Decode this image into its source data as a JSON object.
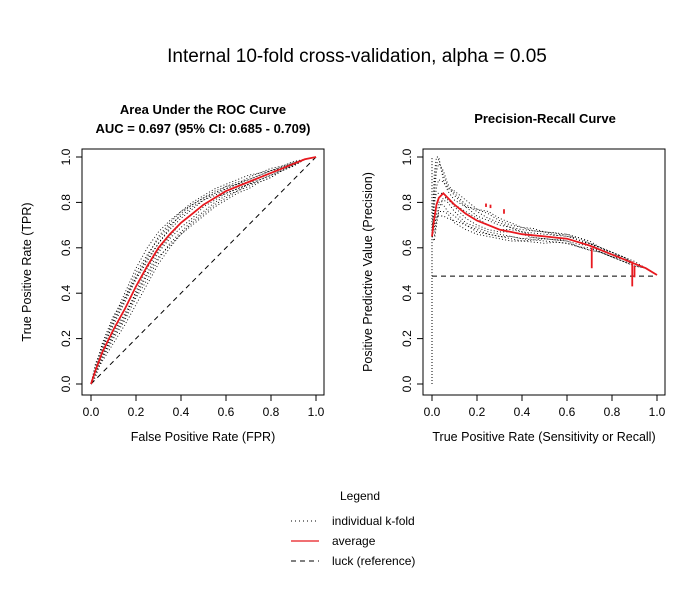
{
  "figure": {
    "title": "Internal 10-fold cross-validation, alpha = 0.05"
  },
  "colors": {
    "average": "#e8191f",
    "fold": "#000000",
    "reference": "#000000"
  },
  "legend": {
    "title": "Legend",
    "placement": "bottom-center",
    "items": [
      {
        "label": "individual k-fold",
        "style": "dotted"
      },
      {
        "label": "average",
        "style": "solid-red"
      },
      {
        "label": "luck (reference)",
        "style": "dashed"
      }
    ]
  },
  "chart_data": [
    {
      "type": "line",
      "title": "Area Under the ROC Curve",
      "subtitle": "AUC = 0.697 (95% CI: 0.685 - 0.709)",
      "xlabel": "False Positive Rate (FPR)",
      "ylabel": "True Positive Rate (TPR)",
      "xlim": [
        0,
        1
      ],
      "ylim": [
        0,
        1
      ],
      "xticks": [
        "0.0",
        "0.2",
        "0.4",
        "0.6",
        "0.8",
        "1.0"
      ],
      "yticks": [
        "0.0",
        "0.2",
        "0.4",
        "0.6",
        "0.8",
        "1.0"
      ],
      "grid": false,
      "average": {
        "x": [
          0,
          0.02,
          0.05,
          0.1,
          0.15,
          0.2,
          0.25,
          0.3,
          0.35,
          0.4,
          0.45,
          0.5,
          0.55,
          0.6,
          0.65,
          0.7,
          0.75,
          0.8,
          0.85,
          0.9,
          0.95,
          1.0
        ],
        "y": [
          0,
          0.06,
          0.14,
          0.24,
          0.33,
          0.43,
          0.52,
          0.6,
          0.66,
          0.71,
          0.75,
          0.79,
          0.82,
          0.85,
          0.87,
          0.89,
          0.91,
          0.93,
          0.95,
          0.97,
          0.99,
          1.0
        ]
      },
      "folds": [
        {
          "offsets": [
            0,
            0.02,
            0.03,
            0.04,
            0.05,
            0.06,
            0.05,
            0.04,
            0.04,
            0.03,
            0.03,
            0.02,
            0.02,
            0.02,
            0.01,
            0.01,
            0.01,
            0.01,
            0.01,
            0.005,
            0,
            0
          ]
        },
        {
          "offsets": [
            0,
            -0.02,
            -0.03,
            -0.04,
            -0.05,
            -0.05,
            -0.06,
            -0.05,
            -0.04,
            -0.04,
            -0.03,
            -0.03,
            -0.02,
            -0.02,
            -0.02,
            -0.01,
            -0.01,
            -0.01,
            -0.01,
            -0.005,
            0,
            0
          ]
        },
        {
          "offsets": [
            0,
            0.01,
            0.02,
            0.05,
            0.07,
            0.08,
            0.08,
            0.07,
            0.06,
            0.05,
            0.04,
            0.03,
            0.03,
            0.02,
            0.02,
            0.01,
            0.01,
            0.01,
            0.005,
            0.005,
            0,
            0
          ]
        },
        {
          "offsets": [
            0,
            -0.01,
            -0.04,
            -0.06,
            -0.07,
            -0.08,
            -0.08,
            -0.07,
            -0.06,
            -0.05,
            -0.04,
            -0.04,
            -0.03,
            -0.03,
            -0.02,
            -0.02,
            -0.01,
            -0.01,
            -0.005,
            -0.005,
            0,
            0
          ]
        },
        {
          "offsets": [
            0,
            0.03,
            0.02,
            0.02,
            0.03,
            0.03,
            0.02,
            0.02,
            0.03,
            0.04,
            0.04,
            0.03,
            0.02,
            0.01,
            0.01,
            0.02,
            0.02,
            0.01,
            0.0,
            0.0,
            0,
            0
          ]
        },
        {
          "offsets": [
            0,
            -0.03,
            -0.02,
            -0.01,
            -0.02,
            -0.03,
            -0.03,
            -0.02,
            -0.02,
            -0.02,
            -0.02,
            -0.01,
            -0.01,
            -0.01,
            -0.01,
            -0.01,
            -0.02,
            -0.02,
            -0.01,
            -0.01,
            0,
            0
          ]
        },
        {
          "offsets": [
            0,
            0.0,
            0.01,
            0.03,
            0.04,
            0.04,
            0.04,
            0.05,
            0.05,
            0.05,
            0.05,
            0.04,
            0.04,
            0.03,
            0.03,
            0.03,
            0.02,
            0.02,
            0.01,
            0.01,
            0,
            0
          ]
        },
        {
          "offsets": [
            0,
            0.0,
            -0.01,
            -0.02,
            -0.03,
            -0.04,
            -0.04,
            -0.04,
            -0.05,
            -0.05,
            -0.05,
            -0.05,
            -0.04,
            -0.04,
            -0.03,
            -0.03,
            -0.02,
            -0.02,
            -0.01,
            -0.01,
            0,
            0
          ]
        },
        {
          "offsets": [
            0,
            0.01,
            0.04,
            0.06,
            0.05,
            0.04,
            0.03,
            0.02,
            0.02,
            0.02,
            0.02,
            0.02,
            0.01,
            0.01,
            0.01,
            0.0,
            0.0,
            0.0,
            0.0,
            0.0,
            0,
            0
          ]
        },
        {
          "offsets": [
            0,
            -0.01,
            -0.02,
            -0.03,
            -0.04,
            -0.02,
            -0.01,
            -0.01,
            -0.01,
            0.0,
            0.0,
            0.0,
            0.0,
            -0.01,
            -0.01,
            -0.01,
            0.0,
            0.0,
            0.0,
            0.0,
            0,
            0
          ]
        }
      ],
      "reference": {
        "x": [
          0,
          1
        ],
        "y": [
          0,
          1
        ]
      }
    },
    {
      "type": "line",
      "title": "Precision-Recall Curve",
      "xlabel": "True Positive Rate (Sensitivity or Recall)",
      "ylabel": "Positive Predictive Value (Precision)",
      "xlim": [
        0,
        1
      ],
      "ylim": [
        0,
        1
      ],
      "xticks": [
        "0.0",
        "0.2",
        "0.4",
        "0.6",
        "0.8",
        "1.0"
      ],
      "yticks": [
        "0.0",
        "0.2",
        "0.4",
        "0.6",
        "0.8",
        "1.0"
      ],
      "grid": false,
      "average": {
        "x": [
          0.0,
          0.01,
          0.02,
          0.03,
          0.05,
          0.07,
          0.1,
          0.15,
          0.2,
          0.25,
          0.3,
          0.35,
          0.4,
          0.45,
          0.5,
          0.55,
          0.6,
          0.65,
          0.7,
          0.75,
          0.8,
          0.85,
          0.9,
          0.95,
          1.0
        ],
        "y": [
          0.65,
          0.73,
          0.79,
          0.82,
          0.84,
          0.82,
          0.79,
          0.75,
          0.72,
          0.7,
          0.68,
          0.67,
          0.66,
          0.655,
          0.65,
          0.645,
          0.64,
          0.625,
          0.61,
          0.59,
          0.57,
          0.55,
          0.53,
          0.51,
          0.48
        ]
      },
      "average_spikes": [
        {
          "x": 0.24,
          "y_from": 0.78,
          "y_to": 0.795
        },
        {
          "x": 0.26,
          "y_from": 0.775,
          "y_to": 0.79
        },
        {
          "x": 0.32,
          "y_from": 0.75,
          "y_to": 0.77
        },
        {
          "x": 0.71,
          "y_from": 0.6,
          "y_to": 0.51
        },
        {
          "x": 0.89,
          "y_from": 0.54,
          "y_to": 0.43
        },
        {
          "x": 0.9,
          "y_from": 0.52,
          "y_to": 0.47
        }
      ],
      "folds": [
        {
          "offsets": [
            0.0,
            0.1,
            0.15,
            0.15,
            0.1,
            0.06,
            0.05,
            0.04,
            0.04,
            0.03,
            0.03,
            0.02,
            0.02,
            0.02,
            0.02,
            0.01,
            0.01,
            0.01,
            0.01,
            0.01,
            0.01,
            0.0,
            0.0,
            0.0,
            0.0
          ]
        },
        {
          "offsets": [
            0.0,
            -0.05,
            -0.04,
            -0.03,
            -0.05,
            -0.06,
            -0.05,
            -0.05,
            -0.04,
            -0.04,
            -0.03,
            -0.03,
            -0.03,
            -0.02,
            -0.02,
            -0.02,
            -0.02,
            -0.02,
            -0.01,
            -0.01,
            -0.01,
            -0.01,
            0.0,
            0.0,
            0.0
          ]
        },
        {
          "offsets": [
            0.0,
            0.2,
            0.21,
            0.18,
            0.06,
            0.03,
            0.02,
            0.03,
            0.05,
            0.06,
            0.05,
            0.04,
            0.03,
            0.02,
            0.02,
            0.02,
            0.01,
            0.02,
            0.02,
            0.01,
            0.01,
            0.01,
            0.0,
            0.0,
            0.0
          ]
        },
        {
          "offsets": [
            0.0,
            -0.08,
            -0.07,
            -0.06,
            -0.08,
            -0.07,
            -0.08,
            -0.07,
            -0.06,
            -0.05,
            -0.04,
            -0.04,
            -0.03,
            -0.03,
            -0.03,
            -0.02,
            -0.02,
            -0.02,
            -0.02,
            -0.01,
            -0.01,
            -0.01,
            -0.01,
            0.0,
            0.0
          ]
        },
        {
          "offsets": [
            0.0,
            0.15,
            0.18,
            0.17,
            0.08,
            0.05,
            0.04,
            0.03,
            0.02,
            0.02,
            0.02,
            0.02,
            0.01,
            0.01,
            0.01,
            0.01,
            0.02,
            0.02,
            0.01,
            0.01,
            0.0,
            0.0,
            0.0,
            0.0,
            0.0
          ]
        },
        {
          "offsets": [
            0.0,
            0.02,
            0.0,
            -0.02,
            -0.03,
            -0.02,
            -0.03,
            -0.04,
            -0.03,
            -0.03,
            -0.02,
            -0.02,
            -0.02,
            -0.02,
            -0.01,
            -0.01,
            -0.01,
            -0.01,
            0.0,
            0.0,
            0.0,
            0.01,
            0.01,
            0.0,
            0.0
          ]
        },
        {
          "offsets": [
            0.0,
            0.05,
            0.08,
            0.08,
            0.05,
            0.04,
            0.06,
            0.06,
            0.05,
            0.05,
            0.04,
            0.03,
            0.03,
            0.03,
            0.02,
            0.02,
            0.02,
            0.01,
            0.01,
            0.01,
            0.01,
            0.01,
            0.0,
            0.0,
            0.0
          ]
        },
        {
          "offsets": [
            0.0,
            -0.1,
            -0.09,
            -0.05,
            -0.02,
            0.0,
            -0.01,
            -0.02,
            -0.02,
            -0.02,
            -0.01,
            0.0,
            0.0,
            -0.01,
            -0.01,
            -0.01,
            0.0,
            0.0,
            0.01,
            0.0,
            0.0,
            0.0,
            0.0,
            0.0,
            0.0
          ]
        },
        {
          "offsets": [
            0.0,
            0.08,
            0.05,
            0.02,
            0.0,
            -0.01,
            0.0,
            0.01,
            0.01,
            0.0,
            0.0,
            0.01,
            0.01,
            0.0,
            0.0,
            0.0,
            0.0,
            0.0,
            0.0,
            -0.01,
            -0.01,
            -0.01,
            -0.01,
            0.0,
            0.0
          ]
        },
        {
          "offsets": [
            0.0,
            -0.03,
            -0.05,
            -0.08,
            -0.1,
            -0.09,
            -0.07,
            -0.05,
            -0.05,
            -0.04,
            -0.03,
            -0.02,
            -0.02,
            -0.01,
            -0.01,
            -0.01,
            -0.01,
            -0.02,
            -0.02,
            -0.01,
            -0.01,
            0.0,
            0.0,
            0.0,
            0.0
          ]
        }
      ],
      "reference": {
        "y": 0.475
      }
    }
  ]
}
